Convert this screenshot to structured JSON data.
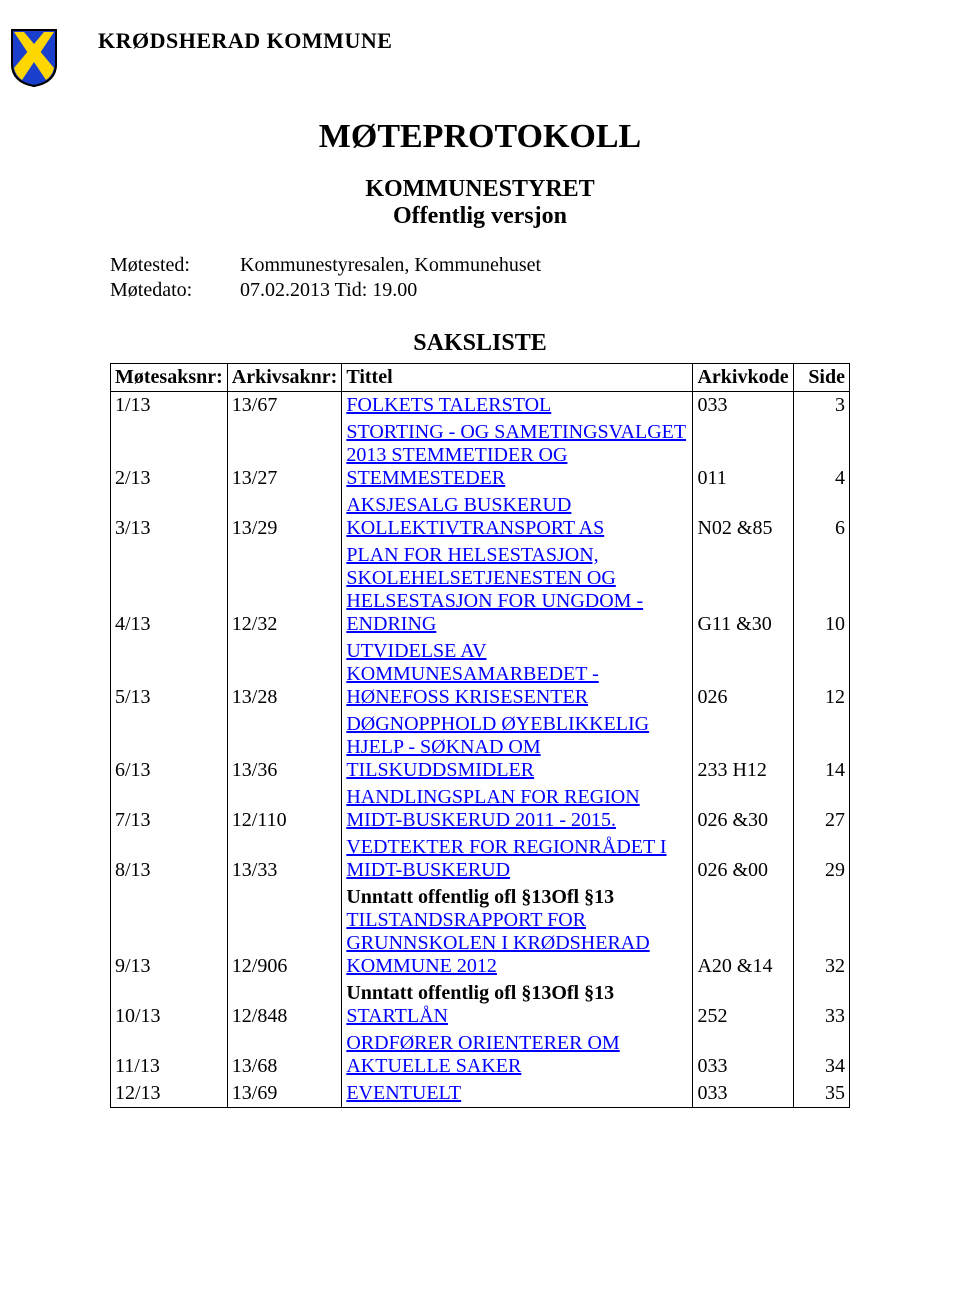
{
  "org_name": "KRØDSHERAD KOMMUNE",
  "main_title": "MØTEPROTOKOLL",
  "subtitle": "KOMMUNESTYRET",
  "subtitle2": "Offentlig versjon",
  "meta": {
    "motested_label": "Møtested:",
    "motested_value": "Kommunestyresalen, Kommunehuset",
    "motedato_label": "Møtedato:",
    "motedato_value": "07.02.2013   Tid: 19.00"
  },
  "saksliste_title": "SAKSLISTE",
  "columns": {
    "c1": "Møtesaksnr:",
    "c2": "Arkivsaknr:",
    "c3": "Tittel",
    "c4": "Arkivkode",
    "c5": "Side"
  },
  "rows": [
    {
      "c1": "1/13",
      "c2": "13/67",
      "prefix": "",
      "title": "FOLKETS TALERSTOL",
      "c4": "033",
      "c5": "3"
    },
    {
      "c1": "2/13",
      "c2": "13/27",
      "prefix": "",
      "title": "STORTING - OG SAMETINGSVALGET 2013 STEMMETIDER OG STEMMESTEDER",
      "c4": "011",
      "c5": "4"
    },
    {
      "c1": "3/13",
      "c2": "13/29",
      "prefix": "",
      "title": "AKSJESALG BUSKERUD KOLLEKTIVTRANSPORT AS",
      "c4": "N02 &85",
      "c5": "6"
    },
    {
      "c1": "4/13",
      "c2": "12/32",
      "prefix": "",
      "title": "PLAN FOR HELSESTASJON, SKOLEHELSETJENESTEN OG HELSESTASJON FOR UNGDOM - ENDRING",
      "c4": "G11 &30",
      "c5": "10"
    },
    {
      "c1": "5/13",
      "c2": "13/28",
      "prefix": "",
      "title": "UTVIDELSE AV KOMMUNESAMARBEDET - HØNEFOSS KRISESENTER",
      "c4": "026",
      "c5": "12"
    },
    {
      "c1": "6/13",
      "c2": "13/36",
      "prefix": "",
      "title": "DØGNOPPHOLD ØYEBLIKKELIG HJELP - SØKNAD OM TILSKUDDSMIDLER",
      "c4": "233 H12",
      "c5": "14"
    },
    {
      "c1": "7/13",
      "c2": "12/110",
      "prefix": "",
      "title": "HANDLINGSPLAN FOR REGION MIDT-BUSKERUD 2011 - 2015.",
      "c4": "026 &30",
      "c5": "27"
    },
    {
      "c1": "8/13",
      "c2": "13/33",
      "prefix": "",
      "title": "VEDTEKTER FOR REGIONRÅDET I MIDT-BUSKERUD",
      "c4": "026 &00",
      "c5": "29"
    },
    {
      "c1": "9/13",
      "c2": "12/906",
      "prefix": "Unntatt offentlig ofl §13Ofl §13",
      "title": "TILSTANDSRAPPORT FOR GRUNNSKOLEN I KRØDSHERAD KOMMUNE 2012",
      "c4": "A20 &14",
      "c5": "32"
    },
    {
      "c1": "10/13",
      "c2": "12/848",
      "prefix": "Unntatt offentlig ofl §13Ofl §13",
      "title": "STARTLÅN",
      "c4": "252",
      "c5": "33"
    },
    {
      "c1": "11/13",
      "c2": "13/68",
      "prefix": "",
      "title": "ORDFØRER ORIENTERER OM AKTUELLE SAKER",
      "c4": "033",
      "c5": "34"
    },
    {
      "c1": "12/13",
      "c2": "13/69",
      "prefix": "",
      "title": "EVENTUELT",
      "c4": "033",
      "c5": "35"
    }
  ],
  "shield": {
    "bg_color": "#1a3fcd",
    "cross_color": "#ffd700",
    "border_color": "#000000"
  }
}
